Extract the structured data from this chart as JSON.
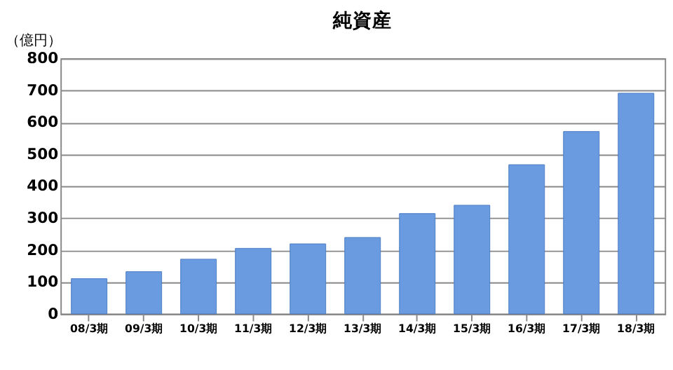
{
  "chart_data": {
    "type": "bar",
    "title": "純資産",
    "ylabel": "（億円）",
    "categories": [
      "08/3期",
      "09/3期",
      "10/3期",
      "11/3期",
      "12/3期",
      "13/3期",
      "14/3期",
      "15/3期",
      "16/3期",
      "17/3期",
      "18/3期"
    ],
    "values": [
      110,
      132,
      171,
      205,
      219,
      239,
      314,
      340,
      467,
      571,
      691
    ],
    "color": "#6a9be0",
    "ylim": [
      0,
      800
    ],
    "yticks": [
      0,
      100,
      200,
      300,
      400,
      500,
      600,
      700,
      800
    ],
    "grid": "y"
  }
}
